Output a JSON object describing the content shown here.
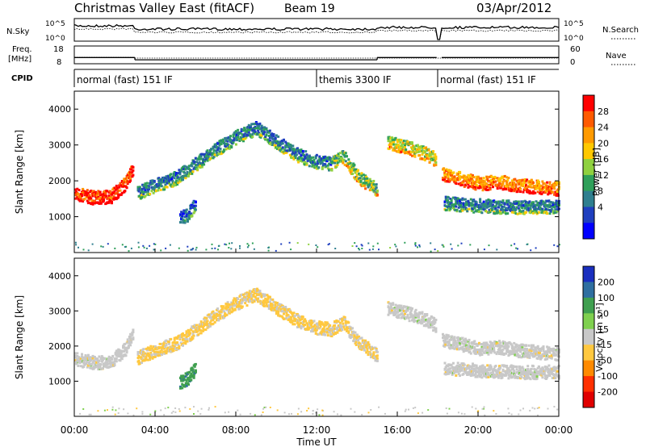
{
  "header": {
    "title": "Christmas Valley East (fitACF)",
    "beam": "Beam 19",
    "date": "03/Apr/2012"
  },
  "strips": {
    "nsky_label": "N.Sky",
    "nsky_ticks": [
      "10^5",
      "10^0"
    ],
    "nsearch_label": "N.Search",
    "nsearch_ticks": [
      "10^5",
      "10^0"
    ],
    "freq_label": "Freq.",
    "freq_unit": "[MHz]",
    "freq_ticks": [
      "18",
      "8"
    ],
    "nave_label": "Nave",
    "nave_ticks": [
      "60",
      "0"
    ],
    "cpid_label": "CPID",
    "cpid_segments": [
      {
        "start_h": 0,
        "end_h": 12,
        "label": "normal (fast) 151 IF"
      },
      {
        "start_h": 12,
        "end_h": 18,
        "label": "themis 3300 IF"
      },
      {
        "start_h": 18,
        "end_h": 24,
        "label": "normal (fast) 151 IF"
      }
    ],
    "freq_steps": [
      {
        "start_h": 0,
        "end_h": 3.0,
        "freq": 11.5
      },
      {
        "start_h": 3.0,
        "end_h": 15.0,
        "freq": 10.2
      },
      {
        "start_h": 15.0,
        "end_h": 17.95,
        "freq": 11.5
      },
      {
        "start_h": 18.2,
        "end_h": 24,
        "freq": 11.5
      }
    ]
  },
  "power_panel": {
    "ylabel": "Slant Range [km]",
    "colorbar_label": "Power [dB]",
    "colorbar_ticks": [
      "28",
      "24",
      "20",
      "16",
      "12",
      "8",
      "4"
    ],
    "colorbar_colors": [
      "#ff0000",
      "#ff5a00",
      "#ff9a00",
      "#ffc800",
      "#8fd13f",
      "#2fa05a",
      "#2f7f8f",
      "#1f3fbf",
      "#0000ff"
    ]
  },
  "velocity_panel": {
    "ylabel": "Slant Range [km]",
    "colorbar_label": "Velocity [m s⁻¹]",
    "colorbar_ticks": [
      "200",
      "100",
      "50",
      "15",
      "-15",
      "-50",
      "-100",
      "-200"
    ],
    "colorbar_colors": [
      "#1a2fbf",
      "#2f6fa0",
      "#3f9f4f",
      "#7fd04f",
      "#c8c8c8",
      "#ffc83f",
      "#ff8a00",
      "#ff3000",
      "#e00000"
    ]
  },
  "xaxis": {
    "label": "Time UT",
    "ticks": [
      "00:00",
      "04:00",
      "08:00",
      "12:00",
      "16:00",
      "20:00",
      "00:00"
    ]
  },
  "chart_data": {
    "type": "heatmap",
    "title": "Christmas Valley East (fitACF)",
    "xlabel": "Time UT",
    "ylabel": "Slant Range [km]",
    "xlim_hours": [
      0,
      24
    ],
    "ylim_km": [
      0,
      4500
    ],
    "y_ticks": [
      1000,
      2000,
      3000,
      4000
    ],
    "power_range_db": [
      0,
      30
    ],
    "velocity_range_ms": [
      -250,
      250
    ],
    "echo_bands": [
      {
        "name": "band-a",
        "points": [
          [
            0.0,
            1650
          ],
          [
            1.0,
            1550
          ],
          [
            1.8,
            1600
          ],
          [
            2.5,
            1950
          ],
          [
            2.9,
            2400
          ]
        ],
        "power_db": 26,
        "velocity_ms": 0
      },
      {
        "name": "band-b",
        "points": [
          [
            3.1,
            1700
          ],
          [
            4.0,
            1900
          ],
          [
            5.0,
            2100
          ],
          [
            6.0,
            2500
          ],
          [
            7.0,
            2900
          ],
          [
            8.0,
            3250
          ],
          [
            9.0,
            3500
          ],
          [
            10.0,
            3100
          ],
          [
            11.0,
            2750
          ],
          [
            12.0,
            2550
          ],
          [
            12.7,
            2500
          ]
        ],
        "power_db": 8,
        "velocity_ms": -40
      },
      {
        "name": "band-c",
        "points": [
          [
            12.7,
            2500
          ],
          [
            13.3,
            2700
          ],
          [
            14.0,
            2150
          ],
          [
            15.0,
            1750
          ]
        ],
        "power_db": 14,
        "velocity_ms": -30
      },
      {
        "name": "band-d",
        "points": [
          [
            15.5,
            3100
          ],
          [
            16.5,
            2950
          ],
          [
            17.5,
            2750
          ],
          [
            17.9,
            2600
          ]
        ],
        "power_db": 16,
        "velocity_ms": 0
      },
      {
        "name": "band-e",
        "points": [
          [
            18.2,
            2200
          ],
          [
            19.0,
            2100
          ],
          [
            20.0,
            1950
          ],
          [
            21.0,
            2000
          ],
          [
            22.0,
            1900
          ],
          [
            23.0,
            1850
          ],
          [
            24.0,
            1800
          ]
        ],
        "power_db": 22,
        "velocity_ms": 0
      },
      {
        "name": "band-f",
        "points": [
          [
            18.3,
            1400
          ],
          [
            19.5,
            1350
          ],
          [
            21.0,
            1300
          ],
          [
            22.5,
            1280
          ],
          [
            24.0,
            1300
          ]
        ],
        "power_db": 8,
        "velocity_ms": 0
      },
      {
        "name": "band-g",
        "points": [
          [
            5.2,
            1000
          ],
          [
            5.6,
            1100
          ],
          [
            6.0,
            1400
          ]
        ],
        "power_db": 6,
        "velocity_ms": 120
      }
    ]
  }
}
